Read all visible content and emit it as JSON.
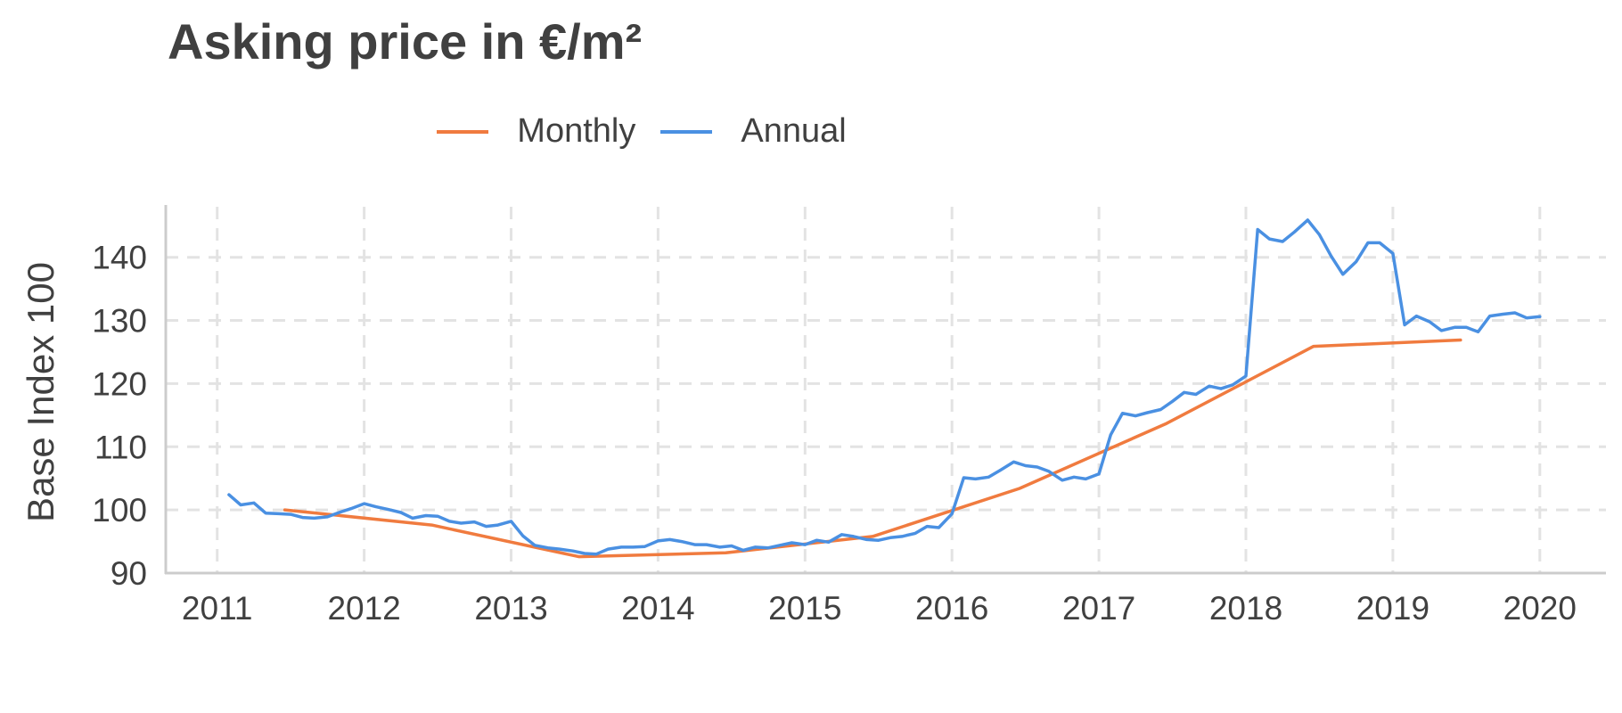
{
  "chart_data": {
    "type": "line",
    "title": "Asking price in €/m²",
    "xlabel": "",
    "ylabel": "Base Index 100",
    "xlim": [
      2010.65,
      2020.45
    ],
    "ylim": [
      90,
      148
    ],
    "x_ticks": [
      2011,
      2012,
      2013,
      2014,
      2015,
      2016,
      2017,
      2018,
      2019,
      2020
    ],
    "x_tick_labels": [
      "2011",
      "2012",
      "2013",
      "2014",
      "2015",
      "2016",
      "2017",
      "2018",
      "2019",
      "2020"
    ],
    "y_ticks": [
      90,
      100,
      110,
      120,
      130,
      140
    ],
    "y_tick_labels": [
      "90",
      "100",
      "110",
      "120",
      "130",
      "140"
    ],
    "grid": true,
    "legend_position": "top-center",
    "series": [
      {
        "name": "Monthly",
        "color": "#f07b3f",
        "x": [
          2011.46,
          2012.46,
          2013.46,
          2014.46,
          2015.46,
          2016.46,
          2017.46,
          2018.46,
          2019.46
        ],
        "y": [
          100.0,
          97.6,
          92.6,
          93.2,
          95.8,
          103.4,
          113.7,
          125.9,
          126.9
        ]
      },
      {
        "name": "Annual",
        "color": "#4a90e2",
        "x": [
          2011.08,
          2011.16,
          2011.25,
          2011.33,
          2011.42,
          2011.5,
          2011.58,
          2011.66,
          2011.75,
          2011.83,
          2011.91,
          2012.0,
          2012.08,
          2012.16,
          2012.25,
          2012.33,
          2012.42,
          2012.5,
          2012.58,
          2012.66,
          2012.75,
          2012.83,
          2012.91,
          2013.0,
          2013.08,
          2013.16,
          2013.25,
          2013.33,
          2013.42,
          2013.5,
          2013.58,
          2013.66,
          2013.75,
          2013.83,
          2013.91,
          2014.0,
          2014.08,
          2014.16,
          2014.25,
          2014.33,
          2014.42,
          2014.5,
          2014.58,
          2014.66,
          2014.75,
          2014.83,
          2014.91,
          2015.0,
          2015.08,
          2015.16,
          2015.25,
          2015.33,
          2015.42,
          2015.5,
          2015.58,
          2015.66,
          2015.75,
          2015.83,
          2015.91,
          2016.0,
          2016.08,
          2016.16,
          2016.25,
          2016.33,
          2016.42,
          2016.5,
          2016.58,
          2016.66,
          2016.75,
          2016.83,
          2016.91,
          2017.0,
          2017.08,
          2017.16,
          2017.25,
          2017.33,
          2017.42,
          2017.5,
          2017.58,
          2017.66,
          2017.75,
          2017.83,
          2017.91,
          2018.0,
          2018.08,
          2018.16,
          2018.25,
          2018.33,
          2018.42,
          2018.5,
          2018.58,
          2018.66,
          2018.75,
          2018.83,
          2018.91,
          2019.0,
          2019.08,
          2019.16,
          2019.25,
          2019.33,
          2019.42,
          2019.5,
          2019.58,
          2019.66,
          2019.75,
          2019.83,
          2019.91,
          2020.0
        ],
        "y": [
          102.4,
          100.8,
          101.1,
          99.5,
          99.4,
          99.3,
          98.8,
          98.7,
          98.9,
          99.6,
          100.2,
          101.0,
          100.5,
          100.1,
          99.6,
          98.7,
          99.1,
          99.0,
          98.2,
          97.9,
          98.1,
          97.4,
          97.6,
          98.2,
          95.9,
          94.4,
          94.0,
          93.8,
          93.5,
          93.1,
          93.0,
          93.8,
          94.1,
          94.1,
          94.2,
          95.1,
          95.3,
          95.0,
          94.5,
          94.5,
          94.1,
          94.3,
          93.6,
          94.1,
          94.0,
          94.4,
          94.8,
          94.5,
          95.2,
          94.9,
          96.1,
          95.8,
          95.3,
          95.2,
          95.6,
          95.8,
          96.3,
          97.4,
          97.2,
          99.4,
          105.1,
          104.9,
          105.2,
          106.3,
          107.6,
          107.0,
          106.8,
          106.1,
          104.7,
          105.2,
          104.9,
          105.7,
          111.9,
          115.3,
          114.9,
          115.4,
          115.9,
          117.2,
          118.6,
          118.3,
          119.6,
          119.2,
          119.8,
          121.2,
          144.4,
          142.9,
          142.5,
          144.0,
          145.9,
          143.6,
          140.2,
          137.3,
          139.3,
          142.3,
          142.3,
          140.6,
          129.3,
          130.7,
          129.8,
          128.4,
          128.9,
          128.9,
          128.2,
          130.7,
          131.0,
          131.2,
          130.4,
          130.6
        ]
      }
    ]
  }
}
